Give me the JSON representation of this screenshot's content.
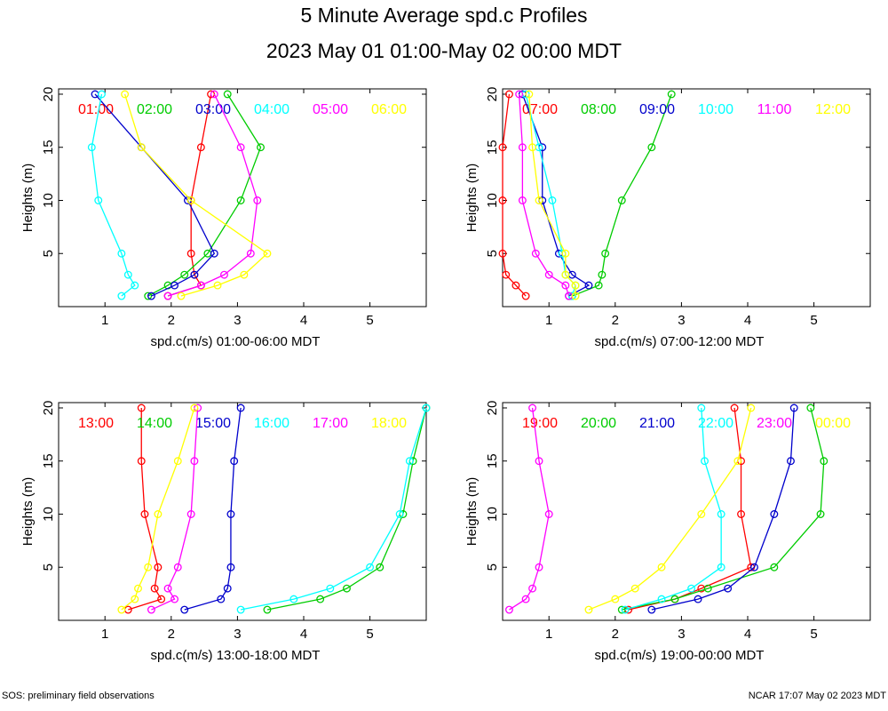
{
  "header": {
    "title": "5 Minute Average spd.c Profiles",
    "subtitle": "2023 May 01 01:00-May 02 00:00 MDT"
  },
  "footer": {
    "left": "SOS: preliminary field observations",
    "right": "NCAR 17:07 May 02 2023 MDT"
  },
  "colors": {
    "red": "#ff0000",
    "green": "#00cc00",
    "blue": "#0000cc",
    "cyan": "#00ffff",
    "magenta": "#ff00ff",
    "yellow": "#ffff00"
  },
  "chart_data": [
    {
      "type": "line",
      "title": "",
      "xlabel": "spd.c(m/s) 01:00-06:00 MDT",
      "ylabel": "Heights (m)",
      "xlim": [
        0.3,
        5.85
      ],
      "ylim": [
        0,
        20.5
      ],
      "xticks": [
        1,
        2,
        3,
        4,
        5
      ],
      "yticks": [
        5,
        10,
        15,
        20
      ],
      "heights": [
        1,
        2,
        3,
        5,
        10,
        15,
        20
      ],
      "series": [
        {
          "name": "01:00",
          "color": "#ff0000",
          "x": [
            1.95,
            2.45,
            2.35,
            2.3,
            2.3,
            2.45,
            2.6
          ]
        },
        {
          "name": "02:00",
          "color": "#00cc00",
          "x": [
            1.65,
            1.95,
            2.2,
            2.55,
            3.05,
            3.35,
            2.85
          ]
        },
        {
          "name": "03:00",
          "color": "#0000cc",
          "x": [
            1.7,
            2.05,
            2.35,
            2.65,
            2.25,
            1.55,
            0.85
          ]
        },
        {
          "name": "04:00",
          "color": "#00ffff",
          "x": [
            1.25,
            1.45,
            1.35,
            1.25,
            0.9,
            0.8,
            0.95
          ]
        },
        {
          "name": "05:00",
          "color": "#ff00ff",
          "x": [
            1.95,
            2.45,
            2.8,
            3.2,
            3.3,
            3.05,
            2.65
          ]
        },
        {
          "name": "06:00",
          "color": "#ffff00",
          "x": [
            2.15,
            2.7,
            3.1,
            3.45,
            2.3,
            1.55,
            1.3
          ]
        }
      ]
    },
    {
      "type": "line",
      "title": "",
      "xlabel": "spd.c(m/s) 07:00-12:00 MDT",
      "ylabel": "Heights (m)",
      "xlim": [
        0.3,
        5.85
      ],
      "ylim": [
        0,
        20.5
      ],
      "xticks": [
        1,
        2,
        3,
        4,
        5
      ],
      "yticks": [
        5,
        10,
        15,
        20
      ],
      "heights": [
        1,
        2,
        3,
        5,
        10,
        15,
        20
      ],
      "series": [
        {
          "name": "07:00",
          "color": "#ff0000",
          "x": [
            0.65,
            0.5,
            0.35,
            0.3,
            0.3,
            0.3,
            0.4
          ]
        },
        {
          "name": "08:00",
          "color": "#00cc00",
          "x": [
            1.35,
            1.75,
            1.8,
            1.85,
            2.1,
            2.55,
            2.85
          ]
        },
        {
          "name": "09:00",
          "color": "#0000cc",
          "x": [
            1.3,
            1.6,
            1.35,
            1.15,
            0.9,
            0.9,
            0.6
          ]
        },
        {
          "name": "10:00",
          "color": "#00ffff",
          "x": [
            1.35,
            1.4,
            1.25,
            1.2,
            1.05,
            0.85,
            0.65
          ]
        },
        {
          "name": "11:00",
          "color": "#ff00ff",
          "x": [
            1.3,
            1.25,
            1.0,
            0.8,
            0.6,
            0.6,
            0.55
          ]
        },
        {
          "name": "12:00",
          "color": "#ffff00",
          "x": [
            1.4,
            1.4,
            1.25,
            1.25,
            0.85,
            0.75,
            0.7
          ]
        }
      ]
    },
    {
      "type": "line",
      "title": "",
      "xlabel": "spd.c(m/s) 13:00-18:00 MDT",
      "ylabel": "Heights (m)",
      "xlim": [
        0.3,
        5.85
      ],
      "ylim": [
        0,
        20.5
      ],
      "xticks": [
        1,
        2,
        3,
        4,
        5
      ],
      "yticks": [
        5,
        10,
        15,
        20
      ],
      "heights": [
        1,
        2,
        3,
        5,
        10,
        15,
        20
      ],
      "series": [
        {
          "name": "13:00",
          "color": "#ff0000",
          "x": [
            1.35,
            1.85,
            1.75,
            1.8,
            1.6,
            1.55,
            1.55
          ]
        },
        {
          "name": "14:00",
          "color": "#00cc00",
          "x": [
            3.45,
            4.25,
            4.65,
            5.15,
            5.5,
            5.65,
            5.85
          ]
        },
        {
          "name": "15:00",
          "color": "#0000cc",
          "x": [
            2.2,
            2.75,
            2.85,
            2.9,
            2.9,
            2.95,
            3.05
          ]
        },
        {
          "name": "16:00",
          "color": "#00ffff",
          "x": [
            3.05,
            3.85,
            4.4,
            5.0,
            5.45,
            5.6,
            5.85
          ]
        },
        {
          "name": "17:00",
          "color": "#ff00ff",
          "x": [
            1.7,
            2.05,
            1.95,
            2.1,
            2.3,
            2.35,
            2.4
          ]
        },
        {
          "name": "18:00",
          "color": "#ffff00",
          "x": [
            1.25,
            1.45,
            1.5,
            1.65,
            1.8,
            2.1,
            2.35
          ]
        }
      ]
    },
    {
      "type": "line",
      "title": "",
      "xlabel": "spd.c(m/s) 19:00-00:00 MDT",
      "ylabel": "Heights (m)",
      "xlim": [
        0.3,
        5.85
      ],
      "ylim": [
        0,
        20.5
      ],
      "xticks": [
        1,
        2,
        3,
        4,
        5
      ],
      "yticks": [
        5,
        10,
        15,
        20
      ],
      "heights": [
        1,
        2,
        3,
        5,
        10,
        15,
        20
      ],
      "series": [
        {
          "name": "19:00",
          "color": "#ff0000",
          "x": [
            2.2,
            2.9,
            3.3,
            4.05,
            3.9,
            3.9,
            3.8
          ]
        },
        {
          "name": "20:00",
          "color": "#00cc00",
          "x": [
            2.1,
            2.9,
            3.4,
            4.4,
            5.1,
            5.15,
            4.95
          ]
        },
        {
          "name": "21:00",
          "color": "#0000cc",
          "x": [
            2.55,
            3.25,
            3.7,
            4.1,
            4.4,
            4.65,
            4.7
          ]
        },
        {
          "name": "22:00",
          "color": "#00ffff",
          "x": [
            2.15,
            2.7,
            3.15,
            3.6,
            3.6,
            3.35,
            3.3
          ]
        },
        {
          "name": "23:00",
          "color": "#ff00ff",
          "x": [
            0.4,
            0.65,
            0.75,
            0.85,
            1.0,
            0.85,
            0.75
          ]
        },
        {
          "name": "00:00",
          "color": "#ffff00",
          "x": [
            1.6,
            2.0,
            2.3,
            2.7,
            3.3,
            3.85,
            4.05
          ]
        }
      ]
    }
  ]
}
